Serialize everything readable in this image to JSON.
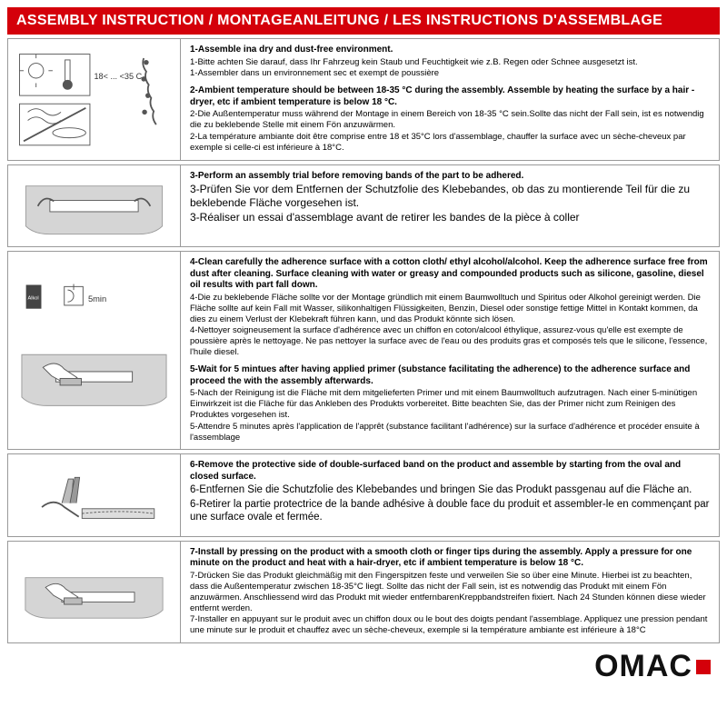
{
  "colors": {
    "header_bg": "#d4000a",
    "header_text": "#ffffff",
    "border": "#999999",
    "text": "#111111",
    "logo_accent": "#d4000a"
  },
  "header": {
    "title": "ASSEMBLY INSTRUCTION / MONTAGEANLEITUNG / LES INSTRUCTIONS D'ASSEMBLAGE"
  },
  "steps": [
    {
      "icon": "temp-dry-icon",
      "lines": [
        {
          "bold": true,
          "text": "1-Assemble ina dry and dust-free environment."
        },
        {
          "bold": false,
          "text": "1-Bitte achten Sie darauf, dass Ihr Fahrzeug kein Staub und Feuchtigkeit wie z.B. Regen oder Schnee ausgesetzt ist."
        },
        {
          "bold": false,
          "text": "1-Assembler dans un environnement sec et exempt de poussière"
        },
        {
          "bold": false,
          "text": ""
        },
        {
          "bold": true,
          "text": "2-Ambient temperature should be between 18-35 °C  during the assembly. Assemble by heating the surface by a hair -dryer, etc if ambient temperature is below 18 °C."
        },
        {
          "bold": false,
          "text": "2-Die Außentemperatur muss während der Montage in einem Bereich von 18-35 °C  sein.Sollte das nicht der Fall sein, ist es notwendig die zu beklebende Stelle mit einem Fön anzuwärmen."
        },
        {
          "bold": false,
          "text": "2-La température ambiante doit être comprise entre 18 et 35°C lors d'assemblage, chauffer la surface avec un sèche-cheveux par exemple si celle-ci est inférieure à 18°C."
        }
      ]
    },
    {
      "icon": "trial-fit-icon",
      "lines": [
        {
          "bold": true,
          "text": "3-Perform an assembly trial before removing bands of the part to be adhered."
        },
        {
          "bold": false,
          "text": "3-Prüfen Sie vor dem Entfernen der Schutzfolie des Klebebandes, ob das zu montierende Teil für die zu beklebende Fläche vorgesehen ist."
        },
        {
          "bold": false,
          "text": "3-Réaliser un essai d'assemblage avant de retirer les bandes de la pièce à coller"
        }
      ],
      "fontsize": "12px"
    },
    {
      "icon": "clean-wait-icon",
      "lines": [
        {
          "bold": true,
          "text": "4-Clean carefully the adherence surface with a cotton cloth/ ethyl alcohol/alcohol. Keep the adherence surface free from dust after cleaning. Surface cleaning with water or greasy and compounded products such as silicone, gasoline, diesel oil results with part fall down."
        },
        {
          "bold": false,
          "text": "4-Die zu beklebende Fläche sollte vor der Montage gründlich mit einem Baumwolltuch und Spiritus oder Alkohol gereinigt werden. Die Fläche sollte auf kein Fall mit Wasser, silikonhaltigen Flüssigkeiten, Benzin, Diesel oder sonstige fettige Mittel in Kontakt kommen, da dies zu einem Verlust der Klebekraft führen kann, und das Produkt könnte sich lösen."
        },
        {
          "bold": false,
          "text": "4-Nettoyer soigneusement la surface d'adhérence avec un chiffon en coton/alcool éthylique, assurez-vous qu'elle est exempte de poussière après le nettoyage. Ne pas nettoyer la surface avec de l'eau ou des produits gras et composés tels que le silicone, l'essence, l'huile diesel."
        },
        {
          "bold": false,
          "text": ""
        },
        {
          "bold": true,
          "text": "5-Wait for 5 mintues after having applied primer (substance facilitating the adherence) to the adherence surface and proceed the with the assembly afterwards."
        },
        {
          "bold": false,
          "text": "5-Nach der Reinigung ist die Fläche mit dem mitgelieferten Primer und mit einem Baumwolltuch aufzutragen. Nach einer 5-minütigen Einwirkzeit ist die Fläche für das Ankleben des Produkts vorbereitet. Bitte beachten Sie, das der Primer nicht zum Reinigen des Produktes vorgesehen ist."
        },
        {
          "bold": false,
          "text": "5-Attendre 5 minutes après l'application de l'apprêt (substance facilitant l'adhérence) sur la surface d'adhérence et procéder ensuite à l'assemblage"
        }
      ]
    },
    {
      "icon": "remove-tape-icon",
      "lines": [
        {
          "bold": true,
          "text": "6-Remove the protective side of double-surfaced band on the product and assemble by starting from the oval and closed surface."
        },
        {
          "bold": false,
          "text": "6-Entfernen Sie die Schutzfolie des Klebebandes und bringen Sie das Produkt passgenau auf die Fläche an."
        },
        {
          "bold": false,
          "text": "6-Retirer la partie protectrice de la bande adhésive à double face du produit et assembler-le en commençant par une surface ovale et fermée."
        }
      ],
      "fontsize": "11.5px"
    },
    {
      "icon": "press-install-icon",
      "lines": [
        {
          "bold": true,
          "text": "7-Install by pressing on the product with a smooth cloth or finger tips during the assembly. Apply a pressure for one minute on the product and heat with a hair-dryer, etc if ambient temperature is below 18 °C."
        },
        {
          "bold": false,
          "text": "7-Drücken Sie das Produkt gleichmäßig mit den Fingerspitzen feste und verweilen Sie so über eine Minute. Hierbei ist zu beachten, dass die Außentemperatur zwischen 18-35°C liegt. Sollte das nicht der Fall sein, ist es notwendig das Produkt mit einem Fön anzuwärmen. Anschliessend wird das Produkt mit wieder entfernbarenKreppbandstreifen fixiert. Nach 24 Stunden können diese wieder entfernt werden."
        },
        {
          "bold": false,
          "text": "7-Installer en appuyant sur le produit avec un chiffon doux ou le bout des doigts pendant l'assemblage. Appliquez une pression pendant une minute sur le produit et chauffez avec un sèche-cheveux, exemple si la température ambiante est inférieure à 18°C"
        }
      ]
    }
  ],
  "logo": {
    "text": "OMAC"
  }
}
